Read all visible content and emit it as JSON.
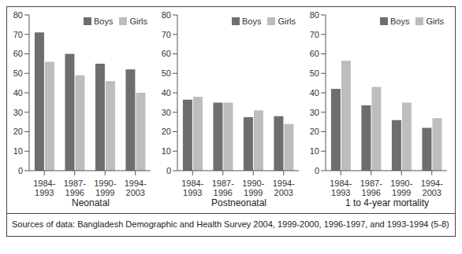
{
  "chart_data": [
    {
      "type": "bar",
      "xlabel": "Neonatal",
      "categories": [
        "1984-1993",
        "1987-1996",
        "1990-1999",
        "1994-2003"
      ],
      "series": [
        {
          "name": "Boys",
          "color": "#6e6e6e",
          "values": [
            71,
            60,
            55,
            52
          ]
        },
        {
          "name": "Girls",
          "color": "#bdbdbd",
          "values": [
            56,
            49,
            46,
            40
          ]
        }
      ],
      "ylim": [
        0,
        80
      ],
      "yticks": [
        0,
        10,
        20,
        30,
        40,
        50,
        60,
        70,
        80
      ],
      "grid": false,
      "legend": "upper right"
    },
    {
      "type": "bar",
      "xlabel": "Postneonatal",
      "categories": [
        "1984-1993",
        "1987-1996",
        "1990-1999",
        "1994-2003"
      ],
      "series": [
        {
          "name": "Boys",
          "color": "#6e6e6e",
          "values": [
            36.5,
            35,
            27.5,
            28
          ]
        },
        {
          "name": "Girls",
          "color": "#bdbdbd",
          "values": [
            38,
            35,
            31,
            24
          ]
        }
      ],
      "ylim": [
        0,
        80
      ],
      "yticks": [
        0,
        10,
        20,
        30,
        40,
        50,
        60,
        70,
        80
      ],
      "grid": false,
      "legend": "upper right"
    },
    {
      "type": "bar",
      "xlabel": "1 to 4-year mortality",
      "categories": [
        "1984-1993",
        "1987-1996",
        "1990-1999",
        "1994-2003"
      ],
      "series": [
        {
          "name": "Boys",
          "color": "#6e6e6e",
          "values": [
            42,
            33.5,
            26,
            22
          ]
        },
        {
          "name": "Girls",
          "color": "#bdbdbd",
          "values": [
            56.5,
            43,
            35,
            27
          ]
        }
      ],
      "ylim": [
        0,
        80
      ],
      "yticks": [
        0,
        10,
        20,
        30,
        40,
        50,
        60,
        70,
        80
      ],
      "grid": false,
      "legend": "upper right"
    }
  ],
  "source": "Sources of data: Bangladesh Demographic and Health Survey 2004, 1999-2000, 1996-1997, and 1993-1994 (5-8)"
}
